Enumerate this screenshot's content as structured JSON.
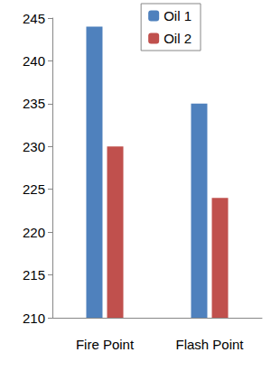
{
  "chart_data": {
    "type": "bar",
    "categories": [
      "Fire Point",
      "Flash Point"
    ],
    "series": [
      {
        "name": "Oil 1",
        "color": "#4f81bd",
        "values": [
          244,
          235
        ]
      },
      {
        "name": "Oil 2",
        "color": "#c0504d",
        "values": [
          230,
          224
        ]
      }
    ],
    "ylim": [
      210,
      245
    ],
    "yticks": [
      210,
      215,
      220,
      225,
      230,
      235,
      240,
      245
    ],
    "grid": false,
    "legend": "upper right"
  }
}
